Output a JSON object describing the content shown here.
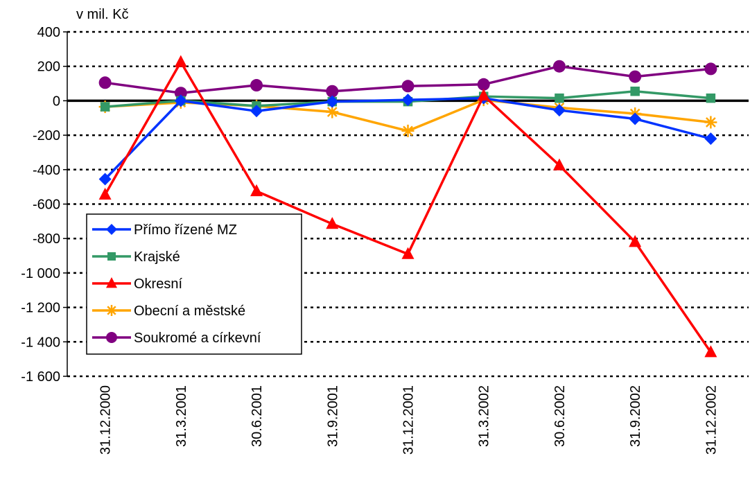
{
  "chart_data": {
    "type": "line",
    "unit_label": "v mil. Kč",
    "categories": [
      "31.12.2000",
      "31.3.2001",
      "30.6.2001",
      "31.9.2001",
      "31.12.2001",
      "31.3.2002",
      "30.6.2002",
      "31.9.2002",
      "31.12.2002"
    ],
    "y_ticks": [
      "400",
      "200",
      "0",
      "-200",
      "-400",
      "-600",
      "-800",
      "-1 000",
      "-1 200",
      "-1 400",
      "-1 600"
    ],
    "ylim": [
      -1600,
      400
    ],
    "grid": "dotted horizontal",
    "legend_position": "left",
    "series": [
      {
        "name": "Přímo řízené MZ",
        "color": "#0033ff",
        "marker": "diamond",
        "values": [
          -455,
          0,
          -60,
          -5,
          5,
          15,
          -55,
          -105,
          -220
        ]
      },
      {
        "name": "Krajské",
        "color": "#339966",
        "marker": "square",
        "values": [
          -35,
          0,
          -30,
          -5,
          -5,
          25,
          15,
          55,
          15
        ]
      },
      {
        "name": "Okresní",
        "color": "#ff0000",
        "marker": "triangle",
        "values": [
          -545,
          225,
          -525,
          -715,
          -890,
          30,
          -375,
          -820,
          -1460
        ]
      },
      {
        "name": "Obecní a městské",
        "color": "#ffa500",
        "marker": "asterisk",
        "values": [
          -35,
          -10,
          -30,
          -65,
          -175,
          5,
          -40,
          -75,
          -125
        ]
      },
      {
        "name": "Soukromé a církevní",
        "color": "#800080",
        "marker": "circle",
        "values": [
          105,
          45,
          90,
          55,
          85,
          95,
          200,
          140,
          185
        ]
      }
    ]
  }
}
